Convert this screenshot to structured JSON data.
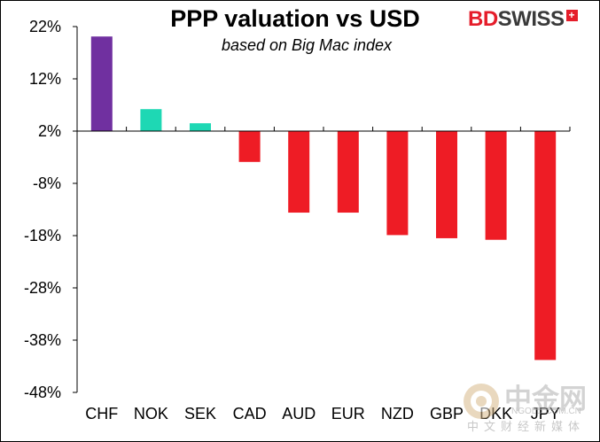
{
  "chart_data": {
    "type": "bar",
    "title": "PPP valuation vs USD",
    "subtitle": "based on Big Mac index",
    "categories": [
      "CHF",
      "NOK",
      "SEK",
      "CAD",
      "AUD",
      "EUR",
      "NZD",
      "GBP",
      "DKK",
      "JPY"
    ],
    "values": [
      20.1,
      6.2,
      3.5,
      -3.9,
      -13.6,
      -13.6,
      -17.9,
      -18.5,
      -18.8,
      -41.8
    ],
    "colors": [
      "#7030a0",
      "#1ed8b4",
      "#1ed8b4",
      "#ee1c25",
      "#ee1c25",
      "#ee1c25",
      "#ee1c25",
      "#ee1c25",
      "#ee1c25",
      "#ee1c25"
    ],
    "yticks": [
      22,
      12,
      2,
      -8,
      -18,
      -28,
      -38,
      -48
    ],
    "ytick_labels": [
      "22%",
      "12%",
      "2%",
      "-8%",
      "-18%",
      "-28%",
      "-38%",
      "-48%"
    ],
    "ylim": [
      -48,
      22
    ],
    "baseline": 2,
    "xlabel": "",
    "ylabel": "",
    "grid": false
  },
  "brand": {
    "name_part1": "BD",
    "name_part2": "SWISS",
    "plus": "+"
  },
  "watermark": {
    "main": "中金网",
    "domain": "NGOLD.COM.CN",
    "sub": "中文财经新媒体"
  }
}
